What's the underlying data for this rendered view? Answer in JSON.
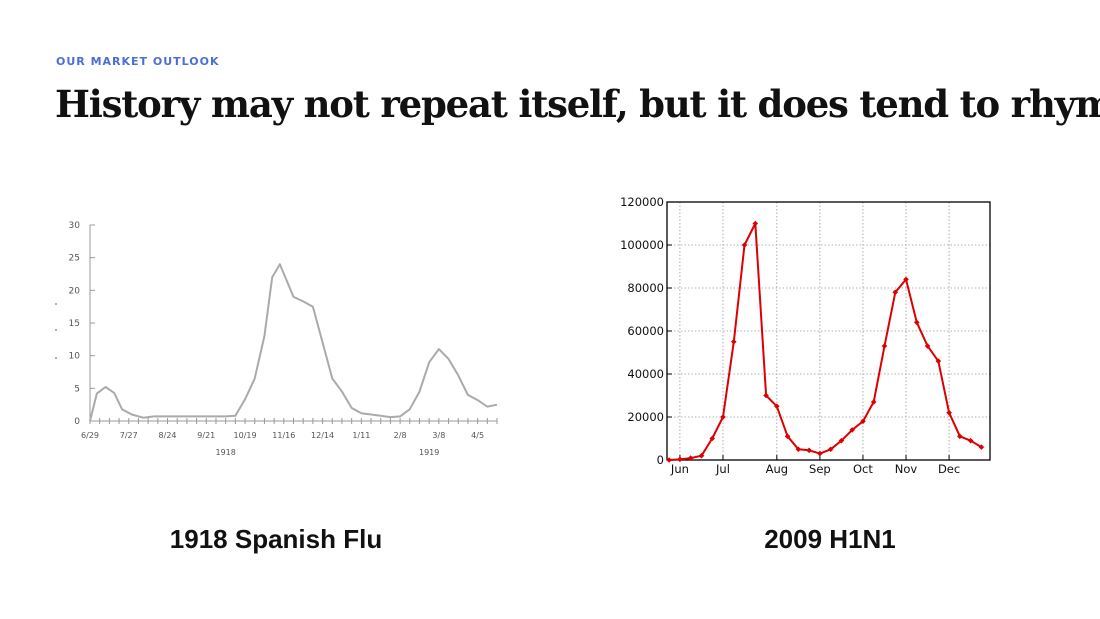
{
  "slide": {
    "eyebrow": "OUR MARKET OUTLOOK",
    "headline": "History may not repeat itself, but it does tend to rhyme."
  },
  "chart_data": [
    {
      "type": "line",
      "caption": "1918 Spanish Flu",
      "line_color": "#aaaaaa",
      "y_ticks": [
        0,
        5,
        10,
        15,
        20,
        25,
        30
      ],
      "ylim": [
        0,
        30
      ],
      "x_tick_labels": [
        "6/29",
        "7/27",
        "8/24",
        "9/21",
        "10/19",
        "11/16",
        "12/14",
        "1/11",
        "2/8",
        "3/8",
        "4/5"
      ],
      "x_tick_positions": [
        0,
        4,
        8,
        12,
        16,
        20,
        24,
        28,
        32,
        36,
        40
      ],
      "year_labels": [
        {
          "text": "1918",
          "x": 14
        },
        {
          "text": "1919",
          "x": 35
        }
      ],
      "series": [
        {
          "x": [
            0,
            0.7,
            1.6,
            2.5,
            3.3,
            4.3,
            5.5,
            6.6,
            8,
            10,
            12,
            14,
            15,
            16,
            17,
            18,
            18.8,
            19.6,
            21,
            22,
            23,
            24,
            25,
            26,
            27,
            28,
            29,
            30,
            31,
            32,
            33,
            34,
            35,
            36,
            37,
            38,
            39,
            40,
            41,
            42
          ],
          "y": [
            0,
            4.2,
            5.2,
            4.3,
            1.8,
            1.0,
            0.5,
            0.7,
            0.7,
            0.7,
            0.7,
            0.7,
            0.8,
            3.3,
            6.5,
            13,
            22,
            24,
            19,
            18.3,
            17.5,
            12,
            6.5,
            4.5,
            2,
            1.2,
            1,
            0.8,
            0.6,
            0.7,
            1.8,
            4.5,
            9,
            11,
            9.5,
            7,
            4,
            3.2,
            2.2,
            2.5
          ]
        }
      ]
    },
    {
      "type": "line",
      "caption": "2009 H1N1",
      "line_color": "#dd0000",
      "ylim": [
        0,
        120000
      ],
      "y_ticks": [
        0,
        20000,
        40000,
        60000,
        80000,
        100000,
        120000
      ],
      "x_ticks": [
        "Jun",
        "Jul",
        "Aug",
        "Sep",
        "Oct",
        "Nov",
        "Dec"
      ],
      "x_tick_positions": [
        1,
        5,
        10,
        14,
        18,
        22,
        26
      ],
      "series": [
        {
          "x": [
            0,
            1,
            2,
            3,
            4,
            5,
            6,
            7,
            8,
            9,
            10,
            11,
            12,
            13,
            14,
            15,
            16,
            17,
            18,
            19,
            20,
            21,
            22,
            23,
            24,
            25,
            26,
            27,
            28,
            29
          ],
          "y": [
            0,
            300,
            900,
            2000,
            10000,
            20000,
            55000,
            100000,
            110000,
            30000,
            25000,
            11000,
            5000,
            4500,
            3000,
            5000,
            9000,
            14000,
            18000,
            27000,
            53000,
            78000,
            84000,
            64000,
            53000,
            46000,
            22000,
            11000,
            9000,
            6000
          ]
        }
      ]
    }
  ]
}
